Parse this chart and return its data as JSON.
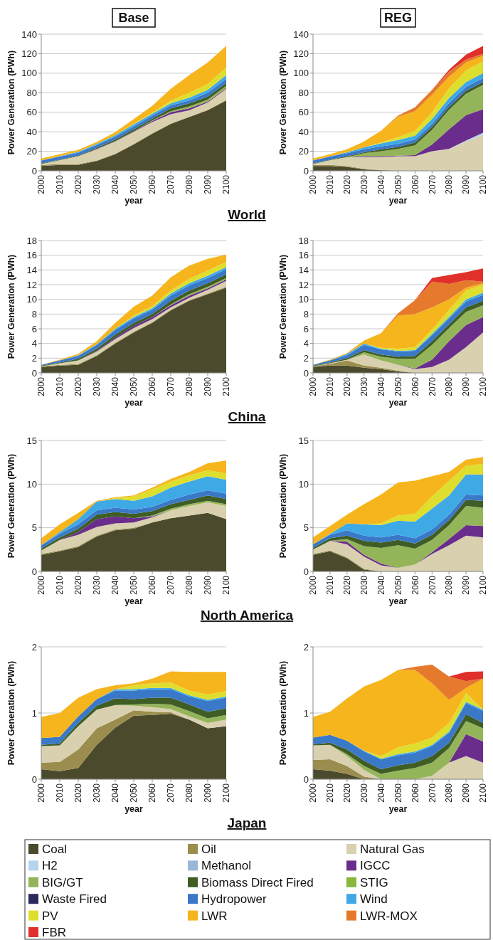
{
  "chart_data": [
    {
      "type": "area",
      "stacked": true,
      "title": "Base",
      "xlabel": "year",
      "ylabel": "Power Generation (PWh)",
      "annotations": [
        "World"
      ],
      "x": [
        2000,
        2010,
        2020,
        2030,
        2040,
        2050,
        2060,
        2070,
        2080,
        2090,
        2100
      ],
      "xlim": [
        2000,
        2100
      ],
      "xticks": [
        2000,
        2010,
        2020,
        2030,
        2040,
        2050,
        2060,
        2070,
        2080,
        2090,
        2100
      ],
      "ylim": [
        0,
        140
      ],
      "yticks": [
        0,
        20,
        40,
        60,
        80,
        100,
        120,
        140
      ],
      "grid": "y",
      "series": [
        {
          "color": "#4b4a2c",
          "values": [
            5,
            6,
            6,
            10,
            17,
            27,
            38,
            48,
            55,
            62,
            72
          ]
        },
        {
          "color": "#9b8d4e",
          "values": [
            1,
            1,
            1,
            0.5,
            0.5,
            0.5,
            0.5,
            0.5,
            0.5,
            0.5,
            0.5
          ]
        },
        {
          "color": "#d8d0ae",
          "values": [
            1,
            4,
            8,
            11.5,
            12.5,
            12.5,
            11.5,
            9.5,
            6.5,
            7.5,
            11.5
          ]
        },
        {
          "color": "#6b2d8c",
          "values": [
            0,
            0,
            0,
            0.5,
            0.5,
            0.5,
            1,
            2,
            2,
            1,
            1
          ]
        },
        {
          "color": "#94b45a",
          "values": [
            0,
            0,
            0,
            0,
            0,
            0,
            0.5,
            1,
            2,
            2,
            2
          ]
        },
        {
          "color": "#3f5d24",
          "values": [
            0.5,
            0.5,
            0.5,
            1,
            1.5,
            2,
            2,
            3,
            3,
            3,
            3
          ]
        },
        {
          "color": "#3a78c8",
          "values": [
            3,
            3,
            3,
            3,
            3,
            3,
            3,
            3,
            3,
            4,
            4
          ]
        },
        {
          "color": "#3fa9e6",
          "values": [
            0,
            0.5,
            1,
            1,
            1.5,
            2,
            2,
            2,
            3,
            3,
            4
          ]
        },
        {
          "color": "#dede2e",
          "values": [
            0,
            0,
            0,
            0,
            0,
            0.5,
            1,
            3,
            5,
            6,
            8
          ]
        },
        {
          "color": "#f6b51c",
          "values": [
            2,
            2,
            2,
            2,
            3,
            5,
            7,
            12,
            18,
            22,
            22
          ]
        }
      ]
    },
    {
      "type": "area",
      "stacked": true,
      "title": "REG",
      "xlabel": "year",
      "ylabel": "Power Generation (PWh)",
      "x": [
        2000,
        2010,
        2020,
        2030,
        2040,
        2050,
        2060,
        2070,
        2080,
        2090,
        2100
      ],
      "xlim": [
        2000,
        2100
      ],
      "xticks": [
        2000,
        2010,
        2020,
        2030,
        2040,
        2050,
        2060,
        2070,
        2080,
        2090,
        2100
      ],
      "ylim": [
        0,
        140
      ],
      "yticks": [
        0,
        20,
        40,
        60,
        80,
        100,
        120,
        140
      ],
      "grid": "y",
      "series": [
        {
          "color": "#4b4a2c",
          "values": [
            5,
            5,
            4,
            1.5,
            0.5,
            0,
            0,
            0,
            0,
            0,
            0
          ]
        },
        {
          "color": "#9b8d4e",
          "values": [
            1,
            1,
            1,
            0.5,
            0.5,
            0,
            0,
            0,
            0,
            0,
            0
          ]
        },
        {
          "color": "#d8d0ae",
          "values": [
            1,
            5,
            9,
            12,
            13,
            15,
            15,
            20,
            22,
            30,
            37
          ]
        },
        {
          "color": "#b4d3ee",
          "values": [
            0,
            0,
            0,
            0,
            0,
            0,
            0,
            0,
            0.5,
            1,
            2
          ]
        },
        {
          "color": "#6b2d8c",
          "values": [
            0,
            0,
            0,
            1,
            1,
            0.5,
            1,
            7,
            20,
            26,
            24
          ]
        },
        {
          "color": "#94b45a",
          "values": [
            0,
            0,
            0,
            3,
            5,
            7,
            10,
            15,
            20,
            22,
            25
          ]
        },
        {
          "color": "#3f5d24",
          "values": [
            0.5,
            0.5,
            1,
            1,
            2,
            2,
            3,
            3,
            3,
            3,
            3
          ]
        },
        {
          "color": "#3a78c8",
          "values": [
            3,
            3,
            3,
            3,
            3,
            3,
            3,
            3,
            4,
            4,
            4
          ]
        },
        {
          "color": "#3fa9e6",
          "values": [
            0,
            0.5,
            1,
            2,
            3,
            4,
            4,
            5,
            5,
            5,
            5
          ]
        },
        {
          "color": "#dede2e",
          "values": [
            0,
            0,
            0,
            0,
            1,
            3,
            5,
            7,
            10,
            12,
            12
          ]
        },
        {
          "color": "#f6b51c",
          "values": [
            2,
            2,
            3,
            6,
            12,
            21,
            20,
            18,
            12,
            8,
            6
          ]
        },
        {
          "color": "#e67a2c",
          "values": [
            0,
            0,
            0,
            0,
            0,
            1,
            4,
            5,
            5,
            3,
            2
          ]
        },
        {
          "color": "#e0302a",
          "values": [
            0,
            0,
            0,
            0,
            0,
            0,
            0,
            0,
            2,
            5,
            8
          ]
        }
      ]
    },
    {
      "type": "area",
      "stacked": true,
      "xlabel": "year",
      "ylabel": "Power Generation (PWh)",
      "annotations": [
        "China"
      ],
      "x": [
        2000,
        2010,
        2020,
        2030,
        2040,
        2050,
        2060,
        2070,
        2080,
        2090,
        2100
      ],
      "xlim": [
        2000,
        2100
      ],
      "xticks": [
        2000,
        2010,
        2020,
        2030,
        2040,
        2050,
        2060,
        2070,
        2080,
        2090,
        2100
      ],
      "ylim": [
        0,
        18
      ],
      "yticks": [
        0,
        2,
        4,
        6,
        8,
        10,
        12,
        14,
        16,
        18
      ],
      "grid": "y",
      "series": [
        {
          "color": "#4b4a2c",
          "values": [
            0.8,
            1,
            1.1,
            2.3,
            4,
            5.5,
            6.8,
            8.5,
            9.8,
            10.7,
            11.6
          ]
        },
        {
          "color": "#9b8d4e",
          "values": [
            0.1,
            0.1,
            0.1,
            0.1,
            0.1,
            0.1,
            0.1,
            0.1,
            0.1,
            0.1,
            0.1
          ]
        },
        {
          "color": "#d8d0ae",
          "values": [
            0,
            0.2,
            0.5,
            0.5,
            0.5,
            0.5,
            0.4,
            0.3,
            0.3,
            0.5,
            0.8
          ]
        },
        {
          "color": "#6b2d8c",
          "values": [
            0,
            0,
            0,
            0.1,
            0.2,
            0.3,
            0.3,
            0.3,
            0.3,
            0.2,
            0.2
          ]
        },
        {
          "color": "#94b45a",
          "values": [
            0,
            0,
            0,
            0,
            0,
            0,
            0,
            0.1,
            0.2,
            0.2,
            0.2
          ]
        },
        {
          "color": "#3f5d24",
          "values": [
            0.1,
            0.1,
            0.2,
            0.3,
            0.4,
            0.4,
            0.4,
            0.5,
            0.5,
            0.5,
            0.5
          ]
        },
        {
          "color": "#3a78c8",
          "values": [
            0.1,
            0.3,
            0.4,
            0.5,
            0.6,
            0.6,
            0.6,
            0.7,
            0.7,
            0.7,
            0.7
          ]
        },
        {
          "color": "#3fa9e6",
          "values": [
            0,
            0,
            0.1,
            0.1,
            0.2,
            0.2,
            0.2,
            0.3,
            0.3,
            0.3,
            0.3
          ]
        },
        {
          "color": "#dede2e",
          "values": [
            0,
            0,
            0,
            0,
            0,
            0.2,
            0.3,
            0.4,
            0.6,
            0.7,
            0.7
          ]
        },
        {
          "color": "#f6b51c",
          "values": [
            0,
            0.1,
            0.2,
            0.4,
            0.8,
            1.2,
            1.4,
            1.8,
            1.8,
            1.6,
            1
          ]
        }
      ]
    },
    {
      "type": "area",
      "stacked": true,
      "xlabel": "year",
      "ylabel": "Power Generation (PWh)",
      "x": [
        2000,
        2010,
        2020,
        2030,
        2040,
        2050,
        2060,
        2070,
        2080,
        2090,
        2100
      ],
      "xlim": [
        2000,
        2100
      ],
      "xticks": [
        2000,
        2010,
        2020,
        2030,
        2040,
        2050,
        2060,
        2070,
        2080,
        2090,
        2100
      ],
      "ylim": [
        0,
        18
      ],
      "yticks": [
        0,
        2,
        4,
        6,
        8,
        10,
        12,
        14,
        16,
        18
      ],
      "grid": "y",
      "series": [
        {
          "color": "#4b4a2c",
          "values": [
            0.8,
            1,
            1,
            0.7,
            0.5,
            0.2,
            0,
            0,
            0,
            0,
            0
          ]
        },
        {
          "color": "#9b8d4e",
          "values": [
            0.1,
            0.2,
            0.7,
            0.3,
            0.2,
            0.1,
            0,
            0,
            0,
            0,
            0
          ]
        },
        {
          "color": "#d8d0ae",
          "values": [
            0,
            0.1,
            0.1,
            1.5,
            1,
            0.8,
            0.5,
            0.8,
            1.8,
            3.5,
            5.5
          ]
        },
        {
          "color": "#6b2d8c",
          "values": [
            0,
            0,
            0,
            0,
            0,
            0,
            0.1,
            1,
            2.5,
            3,
            2.1
          ]
        },
        {
          "color": "#94b45a",
          "values": [
            0,
            0,
            0,
            0.3,
            0.5,
            0.8,
            1.3,
            2,
            1.8,
            1.8,
            1.6
          ]
        },
        {
          "color": "#3f5d24",
          "values": [
            0.1,
            0.1,
            0.2,
            0.3,
            0.3,
            0.3,
            0.4,
            0.5,
            0.5,
            0.6,
            0.6
          ]
        },
        {
          "color": "#3a78c8",
          "values": [
            0.1,
            0.3,
            0.4,
            0.7,
            0.7,
            0.7,
            0.7,
            0.8,
            0.8,
            0.8,
            0.8
          ]
        },
        {
          "color": "#3fa9e6",
          "values": [
            0,
            0,
            0.2,
            0.2,
            0.1,
            0.1,
            0.1,
            0.2,
            0.2,
            0.3,
            0.3
          ]
        },
        {
          "color": "#dede2e",
          "values": [
            0,
            0,
            0,
            0,
            0.1,
            0.3,
            0.4,
            0.6,
            1,
            1.2,
            1.1
          ]
        },
        {
          "color": "#f6b51c",
          "values": [
            0,
            0.1,
            0.1,
            0.4,
            2,
            4.5,
            4.5,
            3,
            1.4,
            0.4,
            0.2
          ]
        },
        {
          "color": "#e67a2c",
          "values": [
            0,
            0,
            0,
            0,
            0,
            0.3,
            1.9,
            3.5,
            2.1,
            1,
            0.2
          ]
        },
        {
          "color": "#e0302a",
          "values": [
            0,
            0,
            0,
            0,
            0,
            0,
            0,
            0.5,
            1.2,
            1.1,
            1.8
          ]
        }
      ]
    },
    {
      "type": "area",
      "stacked": true,
      "xlabel": "year",
      "ylabel": "Power Generation (PWh)",
      "annotations": [
        "North America"
      ],
      "x": [
        2000,
        2010,
        2020,
        2030,
        2040,
        2050,
        2060,
        2070,
        2080,
        2090,
        2100
      ],
      "xlim": [
        2000,
        2100
      ],
      "xticks": [
        2000,
        2010,
        2020,
        2030,
        2040,
        2050,
        2060,
        2070,
        2080,
        2090,
        2100
      ],
      "ylim": [
        0,
        15
      ],
      "yticks": [
        0,
        5,
        10,
        15
      ],
      "grid": "y",
      "series": [
        {
          "color": "#4b4a2c",
          "values": [
            1.9,
            2.3,
            2.8,
            4,
            4.7,
            4.9,
            5.6,
            6.1,
            6.4,
            6.7,
            6
          ]
        },
        {
          "color": "#9b8d4e",
          "values": [
            0.1,
            0.1,
            0.1,
            0.1,
            0.1,
            0.1,
            0,
            0,
            0,
            0,
            0
          ]
        },
        {
          "color": "#d8d0ae",
          "values": [
            0.4,
            1.2,
            1.3,
            1,
            0.7,
            0.6,
            0.6,
            0.9,
            1.1,
            1.2,
            1.5
          ]
        },
        {
          "color": "#6b2d8c",
          "values": [
            0,
            0,
            0.3,
            0.9,
            0.8,
            0.5,
            0.1,
            0,
            0,
            0,
            0
          ]
        },
        {
          "color": "#94b45a",
          "values": [
            0,
            0,
            0,
            0,
            0,
            0,
            0.1,
            0.2,
            0.2,
            0.2,
            0.2
          ]
        },
        {
          "color": "#3f5d24",
          "values": [
            0.2,
            0.3,
            0.4,
            0.5,
            0.5,
            0.5,
            0.5,
            0.5,
            0.5,
            0.6,
            0.6
          ]
        },
        {
          "color": "#3a78c8",
          "values": [
            0.4,
            0.4,
            0.5,
            0.5,
            0.5,
            0.5,
            0.5,
            0.5,
            0.6,
            0.6,
            0.6
          ]
        },
        {
          "color": "#3fa9e6",
          "values": [
            0,
            0.2,
            0.6,
            1,
            1,
            1,
            1.2,
            1.4,
            1.5,
            1.6,
            1.6
          ]
        },
        {
          "color": "#dede2e",
          "values": [
            0,
            0,
            0,
            0,
            0.1,
            0.5,
            0.8,
            0.7,
            0.7,
            0.7,
            0.7
          ]
        },
        {
          "color": "#f6b51c",
          "values": [
            0.8,
            0.9,
            0.7,
            0.1,
            0.1,
            0.1,
            0.2,
            0.3,
            0.4,
            0.8,
            1.5
          ]
        }
      ]
    },
    {
      "type": "area",
      "stacked": true,
      "xlabel": "year",
      "ylabel": "Power Generation (PWh)",
      "x": [
        2000,
        2010,
        2020,
        2030,
        2040,
        2050,
        2060,
        2070,
        2080,
        2090,
        2100
      ],
      "xlim": [
        2000,
        2100
      ],
      "xticks": [
        2000,
        2010,
        2020,
        2030,
        2040,
        2050,
        2060,
        2070,
        2080,
        2090,
        2100
      ],
      "ylim": [
        0,
        15
      ],
      "yticks": [
        0,
        5,
        10,
        15
      ],
      "grid": "y",
      "series": [
        {
          "color": "#4b4a2c",
          "values": [
            1.9,
            2.3,
            1.5,
            0.2,
            0,
            0,
            0,
            0,
            0,
            0,
            0
          ]
        },
        {
          "color": "#9b8d4e",
          "values": [
            0.1,
            0.1,
            0.1,
            0.1,
            0,
            0,
            0,
            0,
            0,
            0,
            0
          ]
        },
        {
          "color": "#d8d0ae",
          "values": [
            0.5,
            1.1,
            1.5,
            1.4,
            0.7,
            0.4,
            0.8,
            2,
            3,
            4.1,
            3.9
          ]
        },
        {
          "color": "#6b2d8c",
          "values": [
            0,
            0,
            0.3,
            0.2,
            0.2,
            0,
            0,
            0.2,
            0.7,
            1.2,
            1.3
          ]
        },
        {
          "color": "#94b45a",
          "values": [
            0,
            0,
            0.3,
            1,
            1.8,
            2.6,
            1.8,
            1.4,
            1.6,
            2.2,
            2.1
          ]
        },
        {
          "color": "#3f5d24",
          "values": [
            0.2,
            0.3,
            0.4,
            0.6,
            0.6,
            0.6,
            0.6,
            0.6,
            0.6,
            0.7,
            0.8
          ]
        },
        {
          "color": "#3a78c8",
          "values": [
            0.4,
            0.4,
            0.6,
            0.6,
            0.6,
            0.6,
            0.6,
            0.6,
            0.6,
            0.6,
            0.6
          ]
        },
        {
          "color": "#3fa9e6",
          "values": [
            0,
            0.1,
            0.8,
            1.3,
            1.4,
            1.6,
            1.9,
            2.4,
            2.2,
            2.3,
            2.4
          ]
        },
        {
          "color": "#dede2e",
          "values": [
            0,
            0,
            0,
            0,
            0.2,
            0.6,
            0.9,
            1.4,
            1.7,
            1,
            1.2
          ]
        },
        {
          "color": "#f6b51c",
          "values": [
            0.8,
            0.9,
            1,
            2.3,
            3.3,
            3.8,
            3.8,
            2.3,
            1,
            0.7,
            0.8
          ]
        }
      ]
    },
    {
      "type": "area",
      "stacked": true,
      "xlabel": "year",
      "ylabel": "Power Generation (PWh)",
      "annotations": [
        "Japan"
      ],
      "x": [
        2000,
        2010,
        2020,
        2030,
        2040,
        2050,
        2060,
        2070,
        2080,
        2090,
        2100
      ],
      "xlim": [
        2000,
        2100
      ],
      "xticks": [
        2000,
        2010,
        2020,
        2030,
        2040,
        2050,
        2060,
        2070,
        2080,
        2090,
        2100
      ],
      "ylim": [
        0,
        2
      ],
      "yticks": [
        0,
        1,
        2
      ],
      "grid": "y",
      "series": [
        {
          "color": "#4b4a2c",
          "values": [
            0.15,
            0.12,
            0.17,
            0.52,
            0.78,
            0.96,
            0.97,
            0.99,
            0.9,
            0.77,
            0.8
          ]
        },
        {
          "color": "#9b8d4e",
          "values": [
            0.1,
            0.14,
            0.28,
            0.25,
            0.12,
            0.08,
            0.05,
            0.02,
            0,
            0,
            0
          ]
        },
        {
          "color": "#d8d0ae",
          "values": [
            0.25,
            0.25,
            0.35,
            0.28,
            0.22,
            0.07,
            0.07,
            0.05,
            0.05,
            0.08,
            0.1
          ]
        },
        {
          "color": "#94b45a",
          "values": [
            0,
            0,
            0,
            0,
            0,
            0.02,
            0.05,
            0.07,
            0.08,
            0.07,
            0.07
          ]
        },
        {
          "color": "#3f5d24",
          "values": [
            0.02,
            0.03,
            0.05,
            0.06,
            0.1,
            0.08,
            0.09,
            0.1,
            0.1,
            0.1,
            0.1
          ]
        },
        {
          "color": "#3a78c8",
          "values": [
            0.1,
            0.1,
            0.1,
            0.1,
            0.12,
            0.13,
            0.13,
            0.13,
            0.12,
            0.16,
            0.16
          ]
        },
        {
          "color": "#3fa9e6",
          "values": [
            0,
            0,
            0,
            0,
            0.02,
            0.02,
            0.02,
            0.02,
            0.02,
            0.02,
            0.02
          ]
        },
        {
          "color": "#dede2e",
          "values": [
            0,
            0,
            0,
            0,
            0,
            0.06,
            0.07,
            0.08,
            0.07,
            0.08,
            0.08
          ]
        },
        {
          "color": "#f6b51c",
          "values": [
            0.32,
            0.36,
            0.28,
            0.15,
            0.06,
            0.03,
            0.07,
            0.17,
            0.28,
            0.34,
            0.29
          ]
        }
      ]
    },
    {
      "type": "area",
      "stacked": true,
      "xlabel": "year",
      "ylabel": "Power Generation (PWh)",
      "legend": "bottom",
      "x": [
        2000,
        2010,
        2020,
        2030,
        2040,
        2050,
        2060,
        2070,
        2080,
        2090,
        2100
      ],
      "xlim": [
        2000,
        2100
      ],
      "xticks": [
        2000,
        2010,
        2020,
        2030,
        2040,
        2050,
        2060,
        2070,
        2080,
        2090,
        2100
      ],
      "ylim": [
        0,
        2
      ],
      "yticks": [
        0,
        1,
        2
      ],
      "grid": "y",
      "series": [
        {
          "name": "Coal",
          "color": "#4b4a2c",
          "values": [
            0.15,
            0.13,
            0.08,
            0,
            0,
            0,
            0,
            0,
            0,
            0,
            0
          ]
        },
        {
          "name": "Oil",
          "color": "#9b8d4e",
          "values": [
            0.14,
            0.17,
            0.12,
            0.04,
            0,
            0,
            0,
            0,
            0,
            0,
            0
          ]
        },
        {
          "name": "Natural Gas",
          "color": "#d8d0ae",
          "values": [
            0.22,
            0.22,
            0.15,
            0.1,
            0,
            0,
            0,
            0.05,
            0.25,
            0.35,
            0.25
          ]
        },
        {
          "name": "H2",
          "color": "#b4d3ee",
          "values": [
            null,
            null,
            null,
            null,
            null,
            null,
            null,
            null,
            null,
            null,
            null
          ]
        },
        {
          "name": "Methanol",
          "color": "#9ab6d8",
          "values": [
            null,
            null,
            null,
            null,
            null,
            null,
            null,
            null,
            null,
            null,
            null
          ]
        },
        {
          "name": "IGCC",
          "color": "#6b2d8c",
          "values": [
            0,
            0,
            0,
            0,
            0,
            0,
            0,
            0,
            0,
            0.33,
            0.32
          ]
        },
        {
          "name": "BIG/GT",
          "color": "#94b45a",
          "values": [
            0,
            0,
            0.03,
            0.06,
            0.08,
            0.13,
            0.17,
            0.2,
            0.22,
            0.2,
            0.2
          ]
        },
        {
          "name": "Biomass Direct Fired",
          "color": "#3f5d24",
          "values": [
            0.02,
            0.03,
            0.07,
            0.08,
            0.07,
            0.08,
            0.08,
            0.1,
            0.08,
            0.1,
            0.08
          ]
        },
        {
          "name": "STIG",
          "color": "#86b83c",
          "values": [
            null,
            null,
            null,
            null,
            null,
            null,
            null,
            null,
            null,
            null,
            null
          ]
        },
        {
          "name": "Waste Fired",
          "color": "#2b2a5e",
          "values": [
            null,
            null,
            null,
            null,
            null,
            null,
            null,
            null,
            null,
            null,
            null
          ]
        },
        {
          "name": "Hydropower",
          "color": "#3a78c8",
          "values": [
            0.1,
            0.12,
            0.13,
            0.14,
            0.15,
            0.15,
            0.15,
            0.15,
            0.15,
            0.17,
            0.18
          ]
        },
        {
          "name": "Wind",
          "color": "#3fa9e6",
          "values": [
            0,
            0,
            0,
            0.01,
            0.01,
            0.02,
            0.02,
            0.02,
            0.02,
            0.02,
            0.02
          ]
        },
        {
          "name": "PV",
          "color": "#dede2e",
          "values": [
            0,
            0,
            0,
            0,
            0.04,
            0.1,
            0.12,
            0.11,
            0.13,
            0.13,
            0
          ]
        },
        {
          "name": "LWR",
          "color": "#f6b51c",
          "values": [
            0.31,
            0.35,
            0.64,
            0.97,
            1.15,
            1.17,
            1.11,
            0.82,
            0.35,
            0.08,
            0.47
          ]
        },
        {
          "name": "LWR-MOX",
          "color": "#e67a2c",
          "values": [
            null,
            null,
            null,
            null,
            null,
            0,
            0.05,
            0.28,
            0.35,
            0.1,
            0
          ]
        },
        {
          "name": "FBR",
          "color": "#e0302a",
          "values": [
            null,
            null,
            null,
            null,
            null,
            null,
            null,
            null,
            0,
            0.14,
            0.11
          ]
        }
      ]
    }
  ]
}
